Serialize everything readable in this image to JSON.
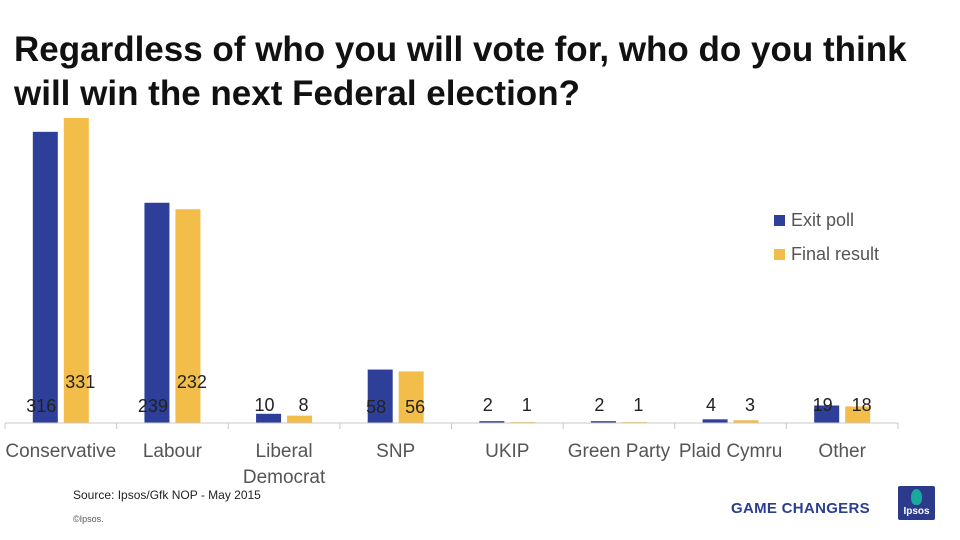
{
  "chart_data": {
    "type": "bar",
    "title": "Regardless of who you will vote for, who do you think will win the next Federal election?",
    "categories": [
      "Conservative",
      "Labour",
      "Liberal Democrat",
      "SNP",
      "UKIP",
      "Green Party",
      "Plaid Cymru",
      "Other"
    ],
    "category_lines": [
      [
        "Conservative"
      ],
      [
        "Labour"
      ],
      [
        "Liberal",
        "Democrat"
      ],
      [
        "SNP"
      ],
      [
        "UKIP"
      ],
      [
        "Green Party"
      ],
      [
        "Plaid Cymru"
      ],
      [
        "Other"
      ]
    ],
    "series": [
      {
        "name": "Exit poll",
        "values": [
          316,
          239,
          10,
          58,
          2,
          2,
          4,
          19
        ],
        "color": "#2e3f99"
      },
      {
        "name": "Final result",
        "values": [
          331,
          232,
          8,
          56,
          1,
          1,
          3,
          18
        ],
        "color": "#f2bd48"
      }
    ],
    "ylim": [
      0,
      331
    ],
    "grid": false,
    "legend_position": "right"
  },
  "footer": {
    "source": "Source: Ipsos/Gfk NOP - May 2015",
    "copyright": "©Ipsos.",
    "tagline": "GAME CHANGERS",
    "logo_text": "Ipsos"
  }
}
